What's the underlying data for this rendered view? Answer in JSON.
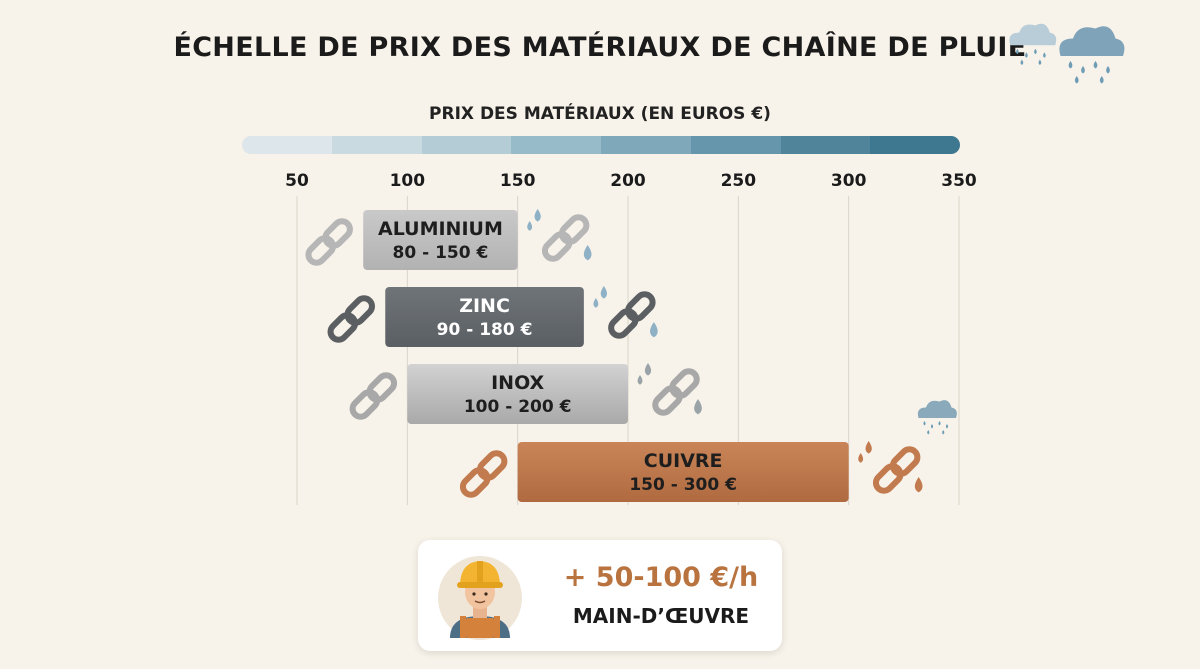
{
  "title": "ÉCHELLE DE PRIX DES MATÉRIAUX DE CHAÎNE DE PLUIE",
  "chart_data": {
    "type": "bar",
    "orientation": "horizontal-range",
    "xlabel": "PRIX DES MATÉRIAUX (EN EUROS €)",
    "xlim": [
      50,
      350
    ],
    "ticks": [
      50,
      100,
      150,
      200,
      250,
      300,
      350
    ],
    "tick_labels": [
      "50",
      "100",
      "150",
      "200",
      "250",
      "300",
      "350"
    ],
    "grid": true,
    "series": [
      {
        "name": "ALUMINIUM",
        "label": "80 - 150 €",
        "min": 80,
        "max": 150,
        "color": "#c9c9c9",
        "color_dark": "#b2b2b2",
        "text_color": "#1e1e1e"
      },
      {
        "name": "ZINC",
        "label": "90 - 180 €",
        "min": 90,
        "max": 180,
        "color": "#6f7478",
        "color_dark": "#5a5f63",
        "text_color": "#ffffff"
      },
      {
        "name": "INOX",
        "label": "100 - 200 €",
        "min": 100,
        "max": 200,
        "color": "#d2d2d2",
        "color_dark": "#a9a9a9",
        "text_color": "#1e1e1e"
      },
      {
        "name": "CUIVRE",
        "label": "150 - 300 €",
        "min": 150,
        "max": 300,
        "color": "#c98558",
        "color_dark": "#b06a40",
        "text_color": "#1e1e1e"
      }
    ],
    "scale_colors": [
      "#dde6ea",
      "#c9dae1",
      "#b3ccd6",
      "#98bbc9",
      "#7fa9ba",
      "#6696ab",
      "#4f849b",
      "#3e7790"
    ]
  },
  "labor": {
    "rate": "+ 50-100 €/h",
    "label": "MAIN-D’ŒUVRE"
  },
  "icons": {
    "chain": "chain-link-icon",
    "drops": "water-drop-icon",
    "cloud": "rain-cloud-icon",
    "worker": "worker-hardhat-icon"
  }
}
